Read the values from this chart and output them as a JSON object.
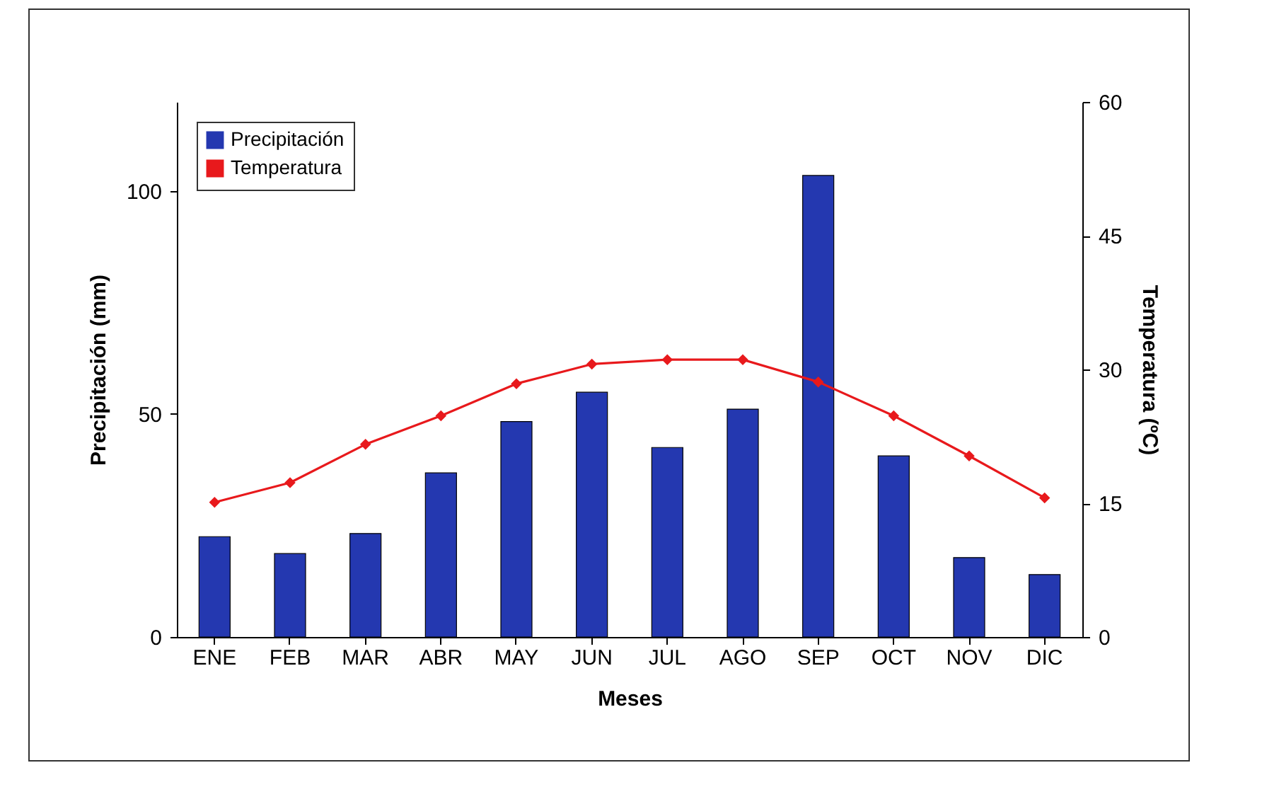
{
  "chart_data": {
    "type": "bar",
    "xlabel": "Meses",
    "ylabel": "Precipitación (mm)",
    "y2label": "Temperatura (ºC)",
    "categories": [
      "ENE",
      "FEB",
      "MAR",
      "ABR",
      "MAY",
      "JUN",
      "JUL",
      "AGO",
      "SEP",
      "OCT",
      "NOV",
      "DIC"
    ],
    "series": [
      {
        "name": "Precipitación",
        "color": "#2438b0",
        "values": [
          22.5,
          18.7,
          23.2,
          36.8,
          48.3,
          54.9,
          42.5,
          51.1,
          103.5,
          40.6,
          17.8,
          14.0
        ]
      },
      {
        "name": "Temperatura",
        "type": "line",
        "axis": "y2",
        "color": "#e8191c",
        "marker": "diamond",
        "line_style": "solid",
        "values": [
          15.1,
          17.3,
          21.6,
          24.8,
          28.4,
          30.6,
          31.1,
          31.1,
          28.6,
          24.8,
          20.3,
          15.6
        ]
      }
    ],
    "ylim": [
      0,
      120
    ],
    "yticks": [
      0,
      50,
      100
    ],
    "y2lim": [
      0,
      60
    ],
    "y2ticks": [
      0,
      15,
      30,
      45,
      60
    ],
    "grid": false,
    "legend": "top left"
  }
}
